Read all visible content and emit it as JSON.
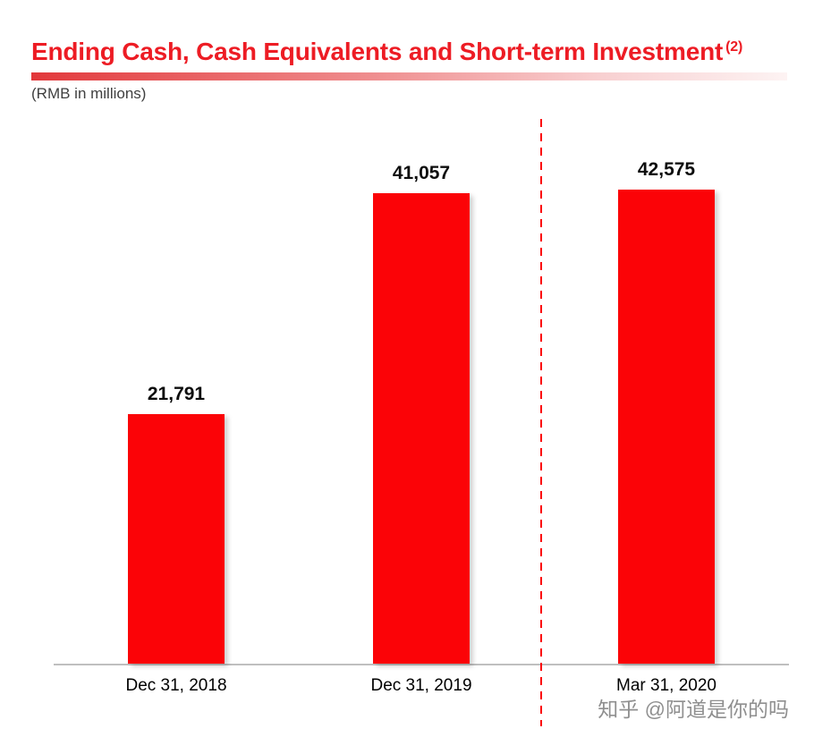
{
  "header": {
    "title": "Ending Cash, Cash Equivalents and Short-term Investment",
    "footnote_ref": "(2)",
    "units": "(RMB in millions)"
  },
  "chart_data": {
    "type": "bar",
    "title": "Ending Cash, Cash Equivalents and Short-term Investment",
    "ylabel": "RMB in millions",
    "categories": [
      "Dec 31, 2018",
      "Dec 31, 2019",
      "Mar 31, 2020"
    ],
    "values": [
      21791,
      41057,
      42575
    ],
    "value_labels": [
      "21,791",
      "41,057",
      "42,575"
    ],
    "ylim": [
      0,
      44000
    ],
    "grid": false,
    "legend": false,
    "bar_color": "#fb0307",
    "separator_note": "red dashed vertical line between Dec 31, 2019 and Mar 31, 2020"
  },
  "watermark": {
    "text": "知乎 @阿道是你的吗"
  },
  "colors": {
    "title_red": "#ed1c24",
    "bar_red": "#fb0307",
    "separator_red": "#fb0307",
    "axis_gray": "#bfbfbf",
    "watermark_gray": "#8f8f8f"
  }
}
